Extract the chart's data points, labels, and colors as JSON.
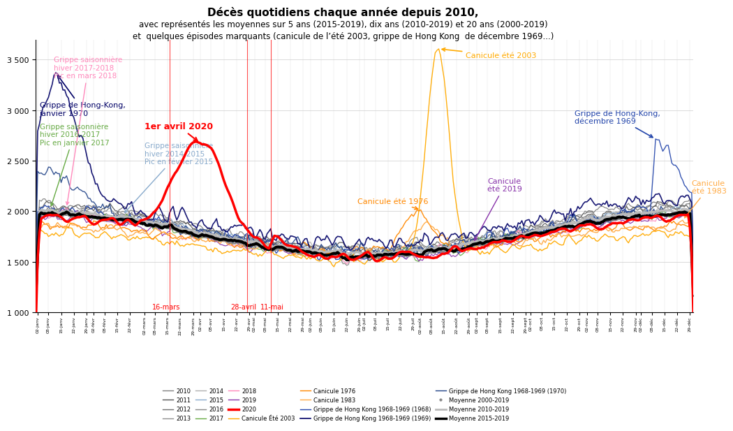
{
  "title_line1": "Décès quotidiens chaque année depuis 2010,",
  "title_line2": "avec représentés les moyennes sur 5 ans (2015-2019), dix ans (2010-2019) et 20 ans (2000-2019)",
  "title_line3": "et  quelques épisodes marquants (canicule de l’été 2003, grippe de Hong Kong  de décembre 1969...)",
  "ylim": [
    1000,
    3700
  ],
  "yticks": [
    1000,
    1500,
    2000,
    2500,
    3000,
    3500
  ],
  "background_color": "#ffffff",
  "year_colors": {
    "2010": "#808080",
    "2011": "#555555",
    "2012": "#707070",
    "2013": "#909090",
    "2014": "#b0b0b0",
    "2015": "#88aacc",
    "2016": "#888888",
    "2017": "#66aa44",
    "2018": "#ff88bb",
    "2019": "#8833aa"
  },
  "special_colors": {
    "2020": "#ff0000",
    "canicule2003": "#ffaa00",
    "canicule1976": "#ff8800",
    "canicule1983": "#ffaa44",
    "hk1968": "#2244aa",
    "hk1969": "#000066",
    "hk1970": "#224488",
    "mean2000_2019": "#888888",
    "mean2010_2019": "#bbbbbb",
    "mean2015_2019": "#000000"
  },
  "annotations": {
    "covid_peak": {
      "text": "1er avril 2020",
      "color": "#ff0000",
      "fontsize": 9,
      "bold": true
    },
    "mars16": {
      "text": "16-mars",
      "color": "#ff0000",
      "fontsize": 7.5
    },
    "avril28": {
      "text": "28-avril",
      "color": "#ff0000",
      "fontsize": 7.5
    },
    "mai11": {
      "text": "11-mai",
      "color": "#ff0000",
      "fontsize": 7.5
    },
    "canicule2003": {
      "text": "Canicule été 2003",
      "color": "#ffaa00",
      "fontsize": 8
    },
    "canicule1976": {
      "text": "Canicule été 1976",
      "color": "#ff8800",
      "fontsize": 8
    },
    "canicule1983": {
      "text": "Canicule\nété 1983",
      "color": "#ffaa44",
      "fontsize": 8
    },
    "canicule2019": {
      "text": "Canicule\nété 2019",
      "color": "#8833aa",
      "fontsize": 8
    },
    "hk1970": {
      "text": "Grippe de Hong-Kong,\njanvier 1970",
      "color": "#000066",
      "fontsize": 8
    },
    "flu20162017": {
      "text": "Grippe saisonnière\nhiver 2016-2017\nPic en janvier 2017",
      "color": "#44aa33",
      "fontsize": 7.5
    },
    "flu20142015": {
      "text": "Grippe saisonnière\nhiver 2014-2015\nPic en février 2015",
      "color": "#6699cc",
      "fontsize": 7.5
    },
    "flu20172018": {
      "text": "Grippe saisonnière\nhiver 2017-2018\nPic en mars 2018",
      "color": "#ff66aa",
      "fontsize": 7.5
    },
    "hk1969dec": {
      "text": "Grippe de Hong-Kong,\ndécembre 1969",
      "color": "#6699cc",
      "fontsize": 8
    }
  }
}
